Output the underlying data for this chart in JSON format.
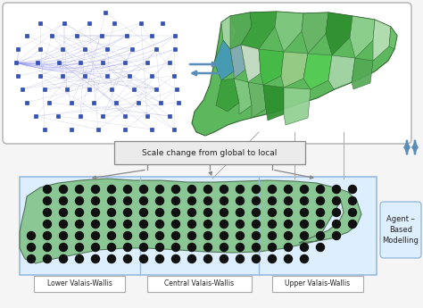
{
  "bg_color": "#f5f5f5",
  "top_box_facecolor": "#ffffff",
  "top_box_edgecolor": "#bbbbbb",
  "scale_box_facecolor": "#ebebeb",
  "scale_box_edgecolor": "#888888",
  "bottom_outer_facecolor": "#ddeeff",
  "bottom_outer_edgecolor": "#99bbdd",
  "agent_box_facecolor": "#ddeeff",
  "agent_box_edgecolor": "#99bbdd",
  "arrow_color": "#5b8db8",
  "connector_color": "#888888",
  "net_bg": "#f8f8ff",
  "map_green_base": "#5db85d",
  "map_region_colors": [
    "#a8d5a8",
    "#55aa55",
    "#3a9e3a",
    "#80c880",
    "#6ab56a",
    "#2d8f2d",
    "#90d090",
    "#b8e0b8",
    "#70c070",
    "#4499bb",
    "#85aabb",
    "#ccddcc",
    "#44bb44",
    "#99cc88",
    "#55cc55"
  ],
  "dot_color": "#111111",
  "wallis_facecolor": "#70bb70",
  "wallis_edgecolor": "#335533",
  "scale_label": "Scale change from global to local",
  "region_labels": [
    "Lower Valais-Wallis",
    "Central Valais-Wallis",
    "Upper Valais-Wallis"
  ],
  "agent_label": "Agent –\nBased\nModelling",
  "figsize": [
    4.74,
    3.45
  ],
  "dpi": 100
}
